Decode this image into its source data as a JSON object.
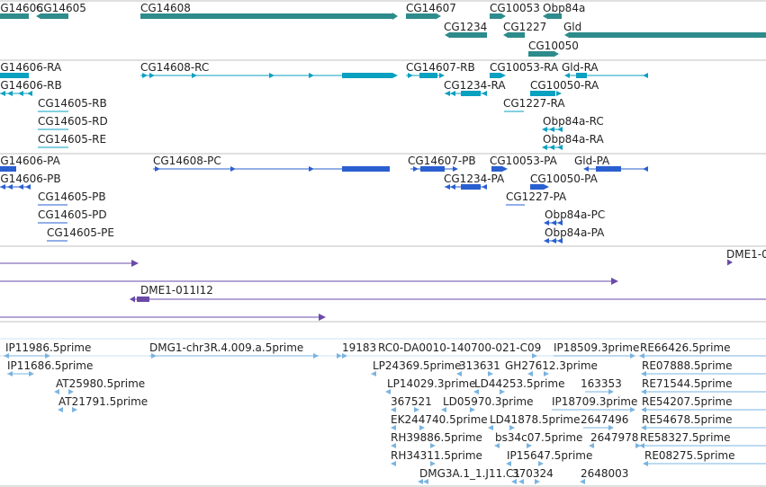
{
  "colors": {
    "gene": "#2e8b8b",
    "transcript": "#0aa0c0",
    "protein": "#2a5fd0",
    "clone": "#6a4ba8",
    "est": "#7ab4e0",
    "separator": "#c0c0c0"
  },
  "tracks": {
    "genes": [
      {
        "label": "CG14606"
      },
      {
        "label": "CG14605"
      },
      {
        "label": "CG14608"
      },
      {
        "label": "CG14607"
      },
      {
        "label": "CG10053"
      },
      {
        "label": "Obp84a"
      },
      {
        "label": "CG1234"
      },
      {
        "label": "CG1227"
      },
      {
        "label": "Gld"
      },
      {
        "label": "CG10050"
      }
    ],
    "transcripts": [
      {
        "label": "CG14606-RA"
      },
      {
        "label": "CG14606-RB"
      },
      {
        "label": "CG14608-RC"
      },
      {
        "label": "CG14607-RB"
      },
      {
        "label": "CG10053-RA"
      },
      {
        "label": "Gld-RA"
      },
      {
        "label": "CG1234-RA"
      },
      {
        "label": "CG10050-RA"
      },
      {
        "label": "CG14605-RB"
      },
      {
        "label": "CG1227-RA"
      },
      {
        "label": "CG14605-RD"
      },
      {
        "label": "Obp84a-RC"
      },
      {
        "label": "CG14605-RE"
      },
      {
        "label": "Obp84a-RA"
      }
    ],
    "proteins": [
      {
        "label": "CG14606-PA"
      },
      {
        "label": "CG14608-PC"
      },
      {
        "label": "CG14607-PB"
      },
      {
        "label": "CG10053-PA"
      },
      {
        "label": "Gld-PA"
      },
      {
        "label": "CG14606-PB"
      },
      {
        "label": "CG1234-PA"
      },
      {
        "label": "CG10050-PA"
      },
      {
        "label": "CG14605-PB"
      },
      {
        "label": "CG1227-PA"
      },
      {
        "label": "CG14605-PD"
      },
      {
        "label": "Obp84a-PC"
      },
      {
        "label": "CG14605-PE"
      },
      {
        "label": "Obp84a-PA"
      }
    ],
    "clones": [
      {
        "label": "DME1-0"
      },
      {
        "label": "DME1-011I12"
      }
    ],
    "ests": [
      {
        "label": "IP11986.5prime"
      },
      {
        "label": "DMG1-chr3R.4.009.a.5prime"
      },
      {
        "label": "19183"
      },
      {
        "label": "RC0-DA0010-140700-021-C09"
      },
      {
        "label": "IP18509.3prime"
      },
      {
        "label": "RE66426.5prime"
      },
      {
        "label": "IP11686.5prime"
      },
      {
        "label": "LP24369.5prime"
      },
      {
        "label": "313631"
      },
      {
        "label": "GH27612.3prime"
      },
      {
        "label": "RE07888.5prime"
      },
      {
        "label": "AT25980.5prime"
      },
      {
        "label": "LP14029.3prime"
      },
      {
        "label": "LD44253.5prime"
      },
      {
        "label": "163353"
      },
      {
        "label": "RE71544.5prime"
      },
      {
        "label": "AT21791.5prime"
      },
      {
        "label": "367521"
      },
      {
        "label": "LD05970.3prime"
      },
      {
        "label": "IP18709.3prime"
      },
      {
        "label": "RE54207.5prime"
      },
      {
        "label": "EK244740.5prime"
      },
      {
        "label": "LD41878.5prime"
      },
      {
        "label": "2647496"
      },
      {
        "label": "RE54678.5prime"
      },
      {
        "label": "RH39886.5prime"
      },
      {
        "label": "bs34c07.5prime"
      },
      {
        "label": "2647978"
      },
      {
        "label": "RE58327.5prime"
      },
      {
        "label": "RH34311.5prime"
      },
      {
        "label": "IP15647.5prime"
      },
      {
        "label": "RE08275.5prime"
      },
      {
        "label": "DMG3A.1_1.J11.C1"
      },
      {
        "label": "370324"
      },
      {
        "label": "2648003"
      }
    ]
  }
}
